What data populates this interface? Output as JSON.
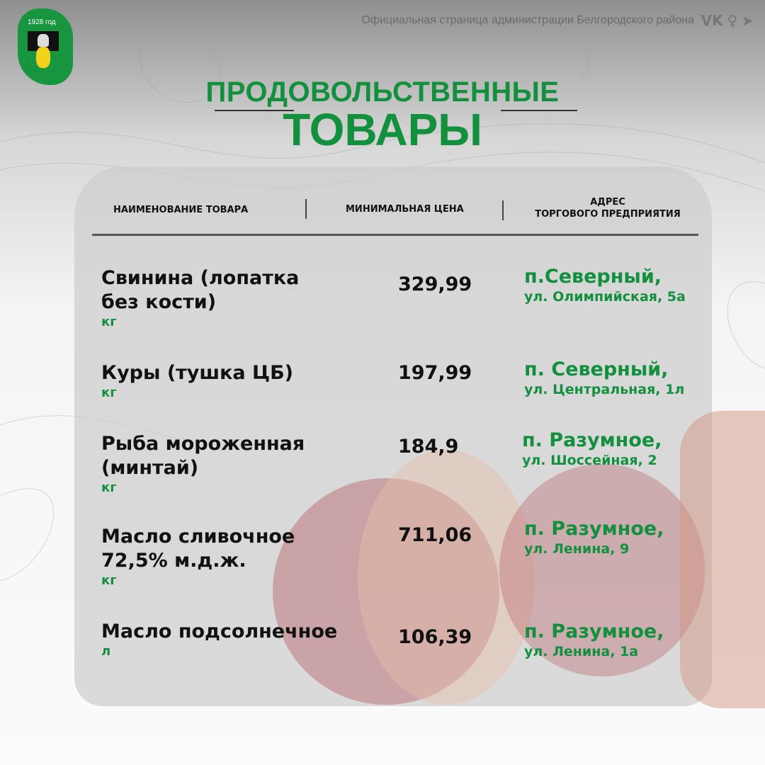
{
  "logo": {
    "year": "1928 год"
  },
  "header": {
    "subtitle": "Официальная страница администрации Белгородского района",
    "social": [
      "vk-icon",
      "ok-icon",
      "telegram-icon"
    ]
  },
  "title": {
    "line1": "ПРОДОВОЛЬСТВЕННЫЕ",
    "line2": "ТОВАРЫ"
  },
  "table": {
    "columns": [
      "НАИМЕНОВАНИЕ ТОВАРА",
      "МИНИМАЛЬНАЯ ЦЕНА",
      "АДРЕС",
      "ТОРГОВОГО ПРЕДПРИЯТИЯ"
    ],
    "rows": [
      {
        "name": "Свинина (лопатка без кости)",
        "unit": "кг",
        "price": "329,99",
        "locality": "п.Северный,",
        "street": "ул. Олимпийская, 5а"
      },
      {
        "name": "Куры (тушка ЦБ)",
        "unit": "кг",
        "price": "197,99",
        "locality": "п. Северный,",
        "street": "ул. Центральная, 1л"
      },
      {
        "name": "Рыба мороженная (минтай)",
        "unit": "кг",
        "price": "184,9",
        "locality": "п. Разумное,",
        "street": "ул. Шоссейная, 2"
      },
      {
        "name": "Масло сливочное 72,5% м.д.ж.",
        "unit": "кг",
        "price": "711,06",
        "locality": "п. Разумное,",
        "street": "ул. Ленина, 9"
      },
      {
        "name": "Масло подсолнечное",
        "unit": "л",
        "price": "106,39",
        "locality": "п. Разумное,",
        "street": "ул. Ленина, 1а"
      }
    ]
  },
  "colors": {
    "accent": "#13903d",
    "text": "#111111"
  }
}
